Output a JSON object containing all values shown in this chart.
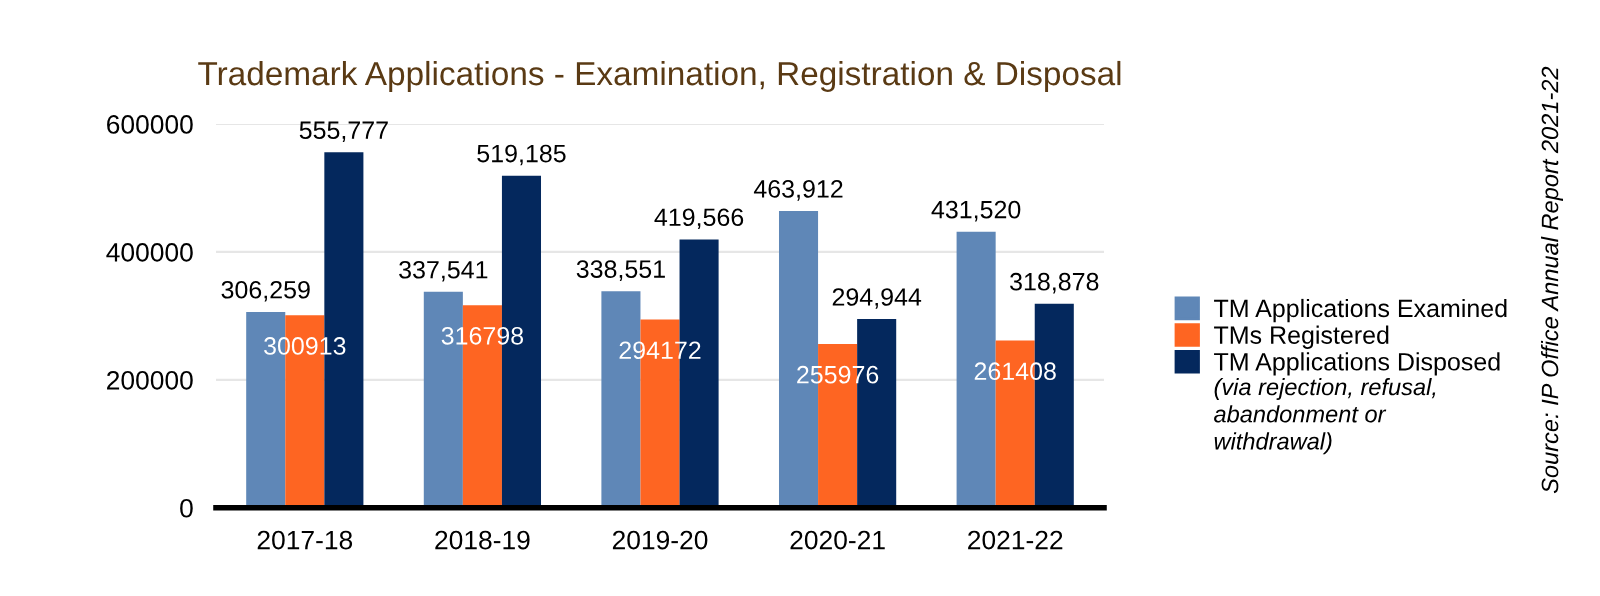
{
  "chart_data": {
    "type": "bar",
    "title": "Trademark Applications - Examination, Registration & Disposal",
    "categories": [
      "2017-18",
      "2018-19",
      "2019-20",
      "2020-21",
      "2021-22"
    ],
    "series": [
      {
        "name": "TM Applications Examined",
        "color": "#5f87b7",
        "values": [
          306259,
          337541,
          338551,
          463912,
          431520
        ],
        "value_labels": [
          "306,259",
          "337,541",
          "338,551",
          "463,912",
          "431,520"
        ]
      },
      {
        "name": "TMs Registered",
        "color": "#fe6522",
        "values": [
          300913,
          316798,
          294172,
          255976,
          261408
        ],
        "value_labels": [
          "300913",
          "316798",
          "294172",
          "255976",
          "261408"
        ]
      },
      {
        "name": "TM Applications Disposed",
        "color": "#04285d",
        "values": [
          555777,
          519185,
          419566,
          294944,
          318878
        ],
        "value_labels": [
          "555,777",
          "519,185",
          "419,566",
          "294,944",
          "318,878"
        ]
      }
    ],
    "ylim": [
      0,
      600000
    ],
    "yticks": [
      0,
      200000,
      400000,
      600000
    ],
    "grid": "y",
    "legend": "right",
    "annotations": [
      "(via rejection, refusal,\nabandonment or\nwithdrawal)",
      "Source: IP Office Annual Report 2021-22"
    ]
  }
}
